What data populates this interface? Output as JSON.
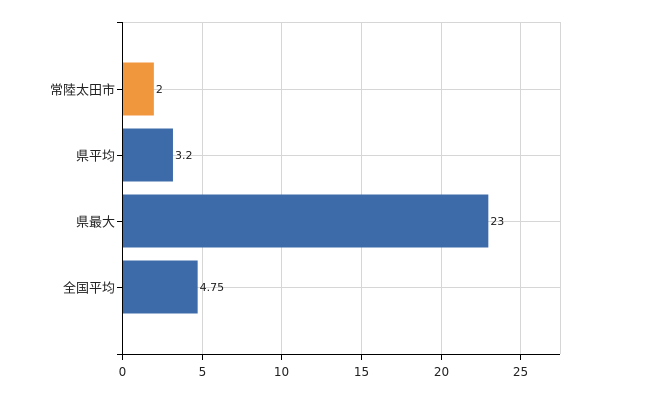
{
  "chart_data": {
    "type": "bar",
    "orientation": "horizontal",
    "categories": [
      "常陸太田市",
      "県平均",
      "県最大",
      "全国平均"
    ],
    "values": [
      2,
      3.2,
      23,
      4.75
    ],
    "data_labels": [
      "2",
      "3.2",
      "23",
      "4.75"
    ],
    "bar_colors": [
      "#F0963C",
      "#3D6BAA",
      "#3D6BAA",
      "#3D6BAA"
    ],
    "xlim": [
      0,
      27.5
    ],
    "x_ticks": [
      0,
      5,
      10,
      15,
      20,
      25
    ],
    "x_tick_labels": [
      "0",
      "5",
      "10",
      "15",
      "20",
      "25"
    ],
    "grid": true,
    "title": "",
    "xlabel": "",
    "ylabel": ""
  },
  "colors": {
    "highlight": "#F0963C",
    "primary": "#3D6BAA",
    "grid": "#d6d6d6",
    "axis": "#000000"
  }
}
